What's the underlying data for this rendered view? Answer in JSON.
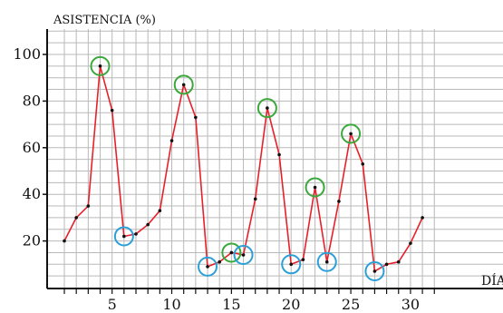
{
  "chart_data": {
    "type": "line",
    "title": "",
    "ylabel": "ASISTENCIA (%)",
    "xlabel": "DÍA",
    "xlim": [
      0,
      32
    ],
    "ylim": [
      0,
      110
    ],
    "grid": true,
    "x_ticks": [
      5,
      10,
      15,
      20,
      25,
      30
    ],
    "x_tick_labels": [
      "5",
      "10",
      "15",
      "20",
      "25",
      "30"
    ],
    "y_ticks": [
      20,
      40,
      60,
      80,
      100
    ],
    "y_tick_labels": [
      "20",
      "40",
      "60",
      "80",
      "100"
    ],
    "line_color": "#e8202a",
    "marker_color": "#111111",
    "series": [
      {
        "x": [
          1,
          2,
          3,
          4,
          5,
          6,
          7,
          8,
          9,
          10,
          11,
          12,
          13,
          14,
          15,
          16,
          17,
          18,
          19,
          20,
          21,
          22,
          23,
          24,
          25,
          26,
          27,
          28,
          29,
          30,
          31
        ],
        "values": [
          20,
          30,
          35,
          95,
          76,
          22,
          23,
          27,
          33,
          63,
          87,
          73,
          9,
          11,
          15,
          14,
          38,
          77,
          57,
          10,
          12,
          43,
          11,
          37,
          66,
          53,
          7,
          10,
          11,
          19,
          30
        ]
      }
    ],
    "annotations": [
      {
        "kind": "peak-circle",
        "color": "#3aa83a",
        "x": 4,
        "y": 95
      },
      {
        "kind": "peak-circle",
        "color": "#3aa83a",
        "x": 11,
        "y": 87
      },
      {
        "kind": "peak-circle",
        "color": "#3aa83a",
        "x": 15,
        "y": 15
      },
      {
        "kind": "peak-circle",
        "color": "#3aa83a",
        "x": 18,
        "y": 77
      },
      {
        "kind": "peak-circle",
        "color": "#3aa83a",
        "x": 22,
        "y": 43
      },
      {
        "kind": "peak-circle",
        "color": "#3aa83a",
        "x": 25,
        "y": 66
      },
      {
        "kind": "trough-circle",
        "color": "#2b9fd8",
        "x": 6,
        "y": 22
      },
      {
        "kind": "trough-circle",
        "color": "#2b9fd8",
        "x": 13,
        "y": 9
      },
      {
        "kind": "trough-circle",
        "color": "#2b9fd8",
        "x": 16,
        "y": 14
      },
      {
        "kind": "trough-circle",
        "color": "#2b9fd8",
        "x": 20,
        "y": 10
      },
      {
        "kind": "trough-circle",
        "color": "#2b9fd8",
        "x": 23,
        "y": 11
      },
      {
        "kind": "trough-circle",
        "color": "#2b9fd8",
        "x": 27,
        "y": 7
      }
    ]
  }
}
